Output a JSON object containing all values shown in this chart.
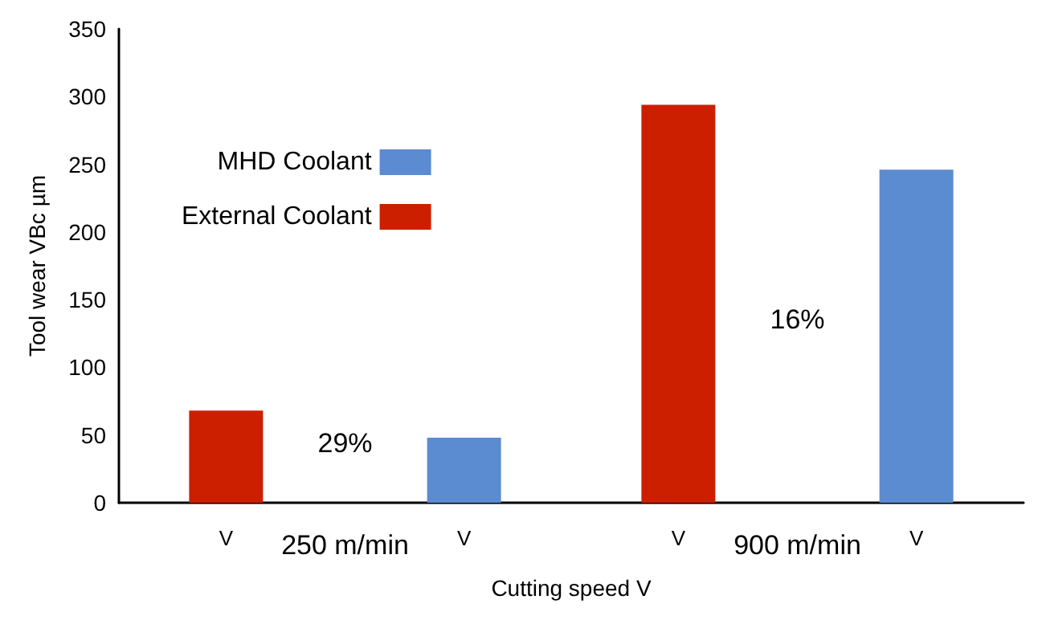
{
  "chart_data": {
    "type": "bar",
    "xlabel": "Cutting speed V",
    "ylabel": "Tool wear VBc µm",
    "categories": [
      "250 m/min",
      "900 m/min"
    ],
    "series": [
      {
        "name": "External Coolant",
        "color": "#cc1f00",
        "values": [
          68,
          294
        ]
      },
      {
        "name": "MHD Coolant",
        "color": "#5b8bd0",
        "values": [
          48,
          246
        ]
      }
    ],
    "ylim": [
      0,
      350
    ],
    "yticks": [
      0,
      50,
      100,
      150,
      200,
      250,
      300,
      350
    ],
    "grid": false,
    "legend": "top left",
    "annotations": [
      "29%",
      "16%",
      "V",
      "V",
      "V",
      "V"
    ]
  }
}
